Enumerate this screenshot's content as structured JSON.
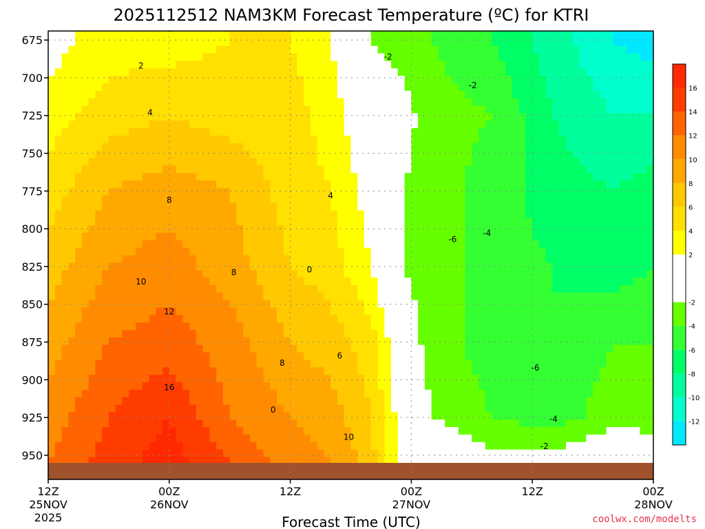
{
  "chart_data": {
    "type": "heatmap",
    "title": "2025112512 NAM3KM Forecast Temperature (ºC) for KTRI",
    "xlabel": "Forecast Time (UTC)",
    "ylabel": "",
    "credit": "coolwx.com/modelts",
    "x_ticks": [
      {
        "hours": 0,
        "lines": [
          "12Z",
          "25NOV",
          "2025"
        ]
      },
      {
        "hours": 12,
        "lines": [
          "00Z",
          "26NOV"
        ]
      },
      {
        "hours": 24,
        "lines": [
          "12Z"
        ]
      },
      {
        "hours": 36,
        "lines": [
          "00Z",
          "27NOV"
        ]
      },
      {
        "hours": 48,
        "lines": [
          "12Z"
        ]
      },
      {
        "hours": 60,
        "lines": [
          "00Z",
          "28NOV"
        ]
      }
    ],
    "xlim": [
      0,
      60
    ],
    "y_ticks": [
      675,
      700,
      725,
      750,
      775,
      800,
      825,
      850,
      875,
      900,
      925,
      950
    ],
    "ylim": [
      669,
      966
    ],
    "grid": true,
    "colorbar": {
      "levels": [
        -14,
        -12,
        -10,
        -8,
        -6,
        -4,
        -2,
        2,
        4,
        6,
        8,
        10,
        12,
        14,
        16,
        18
      ],
      "labels": [
        "-12",
        "-10",
        "-8",
        "-6",
        "-4",
        "-2",
        "2",
        "4",
        "6",
        "8",
        "10",
        "12",
        "14",
        "16"
      ],
      "label_values": [
        -12,
        -10,
        -8,
        -6,
        -4,
        -2,
        2,
        4,
        6,
        8,
        10,
        12,
        14,
        16
      ],
      "colors": [
        "#00e8ff",
        "#00ffcc",
        "#00ff9c",
        "#00ff66",
        "#33ff33",
        "#66ff00",
        "#ffffff",
        "#ffff00",
        "#ffe000",
        "#ffc800",
        "#ffa800",
        "#ff8c00",
        "#ff6400",
        "#ff3c00",
        "#ff2800"
      ]
    },
    "temperature_profile": {
      "pressure_levels": [
        675,
        725,
        775,
        825,
        875,
        925,
        955
      ],
      "series": [
        {
          "hours": 0,
          "values": [
            1,
            3,
            5,
            7,
            9,
            11,
            12
          ]
        },
        {
          "hours": 6,
          "values": [
            3,
            5,
            8,
            10,
            12,
            14,
            15
          ]
        },
        {
          "hours": 12,
          "values": [
            3,
            6,
            9,
            11,
            13,
            16,
            17
          ]
        },
        {
          "hours": 18,
          "values": [
            4,
            5,
            8,
            9,
            11,
            12,
            14
          ]
        },
        {
          "hours": 24,
          "values": [
            4,
            5,
            5,
            6,
            8,
            10,
            11
          ]
        },
        {
          "hours": 28,
          "values": [
            2,
            3,
            4,
            5,
            7,
            9,
            10
          ]
        },
        {
          "hours": 32,
          "values": [
            -2,
            0,
            1,
            2,
            5,
            6,
            7
          ]
        },
        {
          "hours": 35,
          "values": [
            -3,
            -1,
            -2,
            -2,
            0,
            1,
            1
          ]
        },
        {
          "hours": 38,
          "values": [
            -4,
            -3,
            -3,
            -3,
            -3,
            -2,
            1
          ]
        },
        {
          "hours": 44,
          "values": [
            -6,
            -4,
            -5,
            -5,
            -5,
            -4,
            -1
          ]
        },
        {
          "hours": 50,
          "values": [
            -9,
            -8,
            -7,
            -6,
            -6,
            -5,
            -1
          ]
        },
        {
          "hours": 56,
          "values": [
            -12,
            -10,
            -8,
            -7,
            -4,
            -3,
            1
          ]
        },
        {
          "hours": 60,
          "values": [
            -13,
            -10,
            -7,
            -6,
            -4,
            -3,
            0
          ]
        }
      ]
    },
    "contour_labels": [
      {
        "text": "2",
        "hours": 9.2,
        "p": 692
      },
      {
        "text": "4",
        "hours": 10.1,
        "p": 723
      },
      {
        "text": "8",
        "hours": 12.0,
        "p": 781
      },
      {
        "text": "8",
        "hours": 18.4,
        "p": 829
      },
      {
        "text": "10",
        "hours": 9.2,
        "p": 835
      },
      {
        "text": "12",
        "hours": 12.0,
        "p": 855
      },
      {
        "text": "16",
        "hours": 12.0,
        "p": 905
      },
      {
        "text": "8",
        "hours": 23.2,
        "p": 889
      },
      {
        "text": "4",
        "hours": 28.0,
        "p": 778
      },
      {
        "text": "6",
        "hours": 28.9,
        "p": 884
      },
      {
        "text": "10",
        "hours": 29.8,
        "p": 938
      },
      {
        "text": "0",
        "hours": 22.3,
        "p": 920
      },
      {
        "text": "0",
        "hours": 25.9,
        "p": 827
      },
      {
        "text": "-2",
        "hours": 33.7,
        "p": 686
      },
      {
        "text": "-2",
        "hours": 42.1,
        "p": 705
      },
      {
        "text": "-6",
        "hours": 40.1,
        "p": 807
      },
      {
        "text": "-4",
        "hours": 43.5,
        "p": 803
      },
      {
        "text": "-6",
        "hours": 48.3,
        "p": 892
      },
      {
        "text": "-4",
        "hours": 50.1,
        "p": 926
      },
      {
        "text": "-2",
        "hours": 49.2,
        "p": 944
      }
    ]
  }
}
